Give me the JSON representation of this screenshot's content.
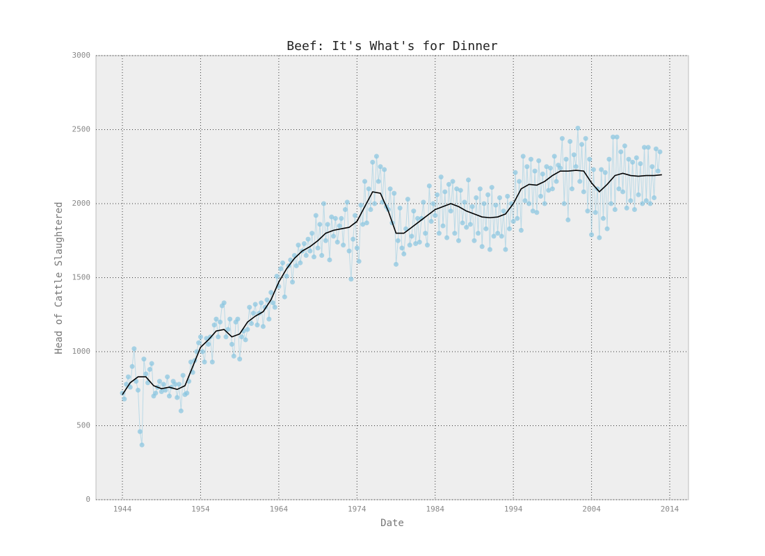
{
  "chart_data": {
    "type": "line",
    "title": "Beef: It's What's for Dinner",
    "xlabel": "Date",
    "ylabel": "Head of Cattle Slaughtered",
    "xlim": [
      1940.62,
      2016.4
    ],
    "ylim": [
      0,
      3000
    ],
    "xticks": [
      1944,
      1954,
      1964,
      1974,
      1984,
      1994,
      2004,
      2014
    ],
    "yticks": [
      0,
      500,
      1000,
      1500,
      2000,
      2500,
      3000
    ],
    "grid": true,
    "series": [
      {
        "color": "#87c5e0",
        "markers": true,
        "x": [
          1944,
          1944.25,
          1944.5,
          1944.75,
          1945,
          1945.25,
          1945.5,
          1945.75,
          1946,
          1946.25,
          1946.5,
          1946.75,
          1947,
          1947.25,
          1947.5,
          1947.75,
          1948,
          1948.25,
          1948.5,
          1948.75,
          1949,
          1949.25,
          1949.5,
          1949.75,
          1950,
          1950.25,
          1950.5,
          1950.75,
          1951,
          1951.25,
          1951.5,
          1951.75,
          1952,
          1952.25,
          1952.5,
          1952.75,
          1953,
          1953.25,
          1953.5,
          1953.75,
          1954,
          1954.25,
          1954.5,
          1954.75,
          1955,
          1955.25,
          1955.5,
          1955.75,
          1956,
          1956.25,
          1956.5,
          1956.75,
          1957,
          1957.25,
          1957.5,
          1957.75,
          1958,
          1958.25,
          1958.5,
          1958.75,
          1959,
          1959.25,
          1959.5,
          1959.75,
          1960,
          1960.25,
          1960.5,
          1960.75,
          1961,
          1961.25,
          1961.5,
          1961.75,
          1962,
          1962.25,
          1962.5,
          1962.75,
          1963,
          1963.25,
          1963.5,
          1963.75,
          1964,
          1964.25,
          1964.5,
          1964.75,
          1965,
          1965.25,
          1965.5,
          1965.75,
          1966,
          1966.25,
          1966.5,
          1966.75,
          1967,
          1967.25,
          1967.5,
          1967.75,
          1968,
          1968.25,
          1968.5,
          1968.75,
          1969,
          1969.25,
          1969.5,
          1969.75,
          1970,
          1970.25,
          1970.5,
          1970.75,
          1971,
          1971.25,
          1971.5,
          1971.75,
          1972,
          1972.25,
          1972.5,
          1972.75,
          1973,
          1973.25,
          1973.5,
          1973.75,
          1974,
          1974.25,
          1974.5,
          1974.75,
          1975,
          1975.25,
          1975.5,
          1975.75,
          1976,
          1976.25,
          1976.5,
          1976.75,
          1977,
          1977.25,
          1977.5,
          1977.75,
          1978,
          1978.25,
          1978.5,
          1978.75,
          1979,
          1979.25,
          1979.5,
          1979.75,
          1980,
          1980.25,
          1980.5,
          1980.75,
          1981,
          1981.25,
          1981.5,
          1981.75,
          1982,
          1982.25,
          1982.5,
          1982.75,
          1983,
          1983.25,
          1983.5,
          1983.75,
          1984,
          1984.25,
          1984.5,
          1984.75,
          1985,
          1985.25,
          1985.5,
          1985.75,
          1986,
          1986.25,
          1986.5,
          1986.75,
          1987,
          1987.25,
          1987.5,
          1987.75,
          1988,
          1988.25,
          1988.5,
          1988.75,
          1989,
          1989.25,
          1989.5,
          1989.75,
          1990,
          1990.25,
          1990.5,
          1990.75,
          1991,
          1991.25,
          1991.5,
          1991.75,
          1992,
          1992.25,
          1992.5,
          1992.75,
          1993,
          1993.25,
          1993.5,
          1993.75,
          1994,
          1994.25,
          1994.5,
          1994.75,
          1995,
          1995.25,
          1995.5,
          1995.75,
          1996,
          1996.25,
          1996.5,
          1996.75,
          1997,
          1997.25,
          1997.5,
          1997.75,
          1998,
          1998.25,
          1998.5,
          1998.75,
          1999,
          1999.25,
          1999.5,
          1999.75,
          2000,
          2000.25,
          2000.5,
          2000.75,
          2001,
          2001.25,
          2001.5,
          2001.75,
          2002,
          2002.25,
          2002.5,
          2002.75,
          2003,
          2003.25,
          2003.5,
          2003.75,
          2004,
          2004.25,
          2004.5,
          2004.75,
          2005,
          2005.25,
          2005.5,
          2005.75,
          2006,
          2006.25,
          2006.5,
          2006.75,
          2007,
          2007.25,
          2007.5,
          2007.75,
          2008,
          2008.25,
          2008.5,
          2008.75,
          2009,
          2009.25,
          2009.5,
          2009.75,
          2010,
          2010.25,
          2010.5,
          2010.75,
          2011,
          2011.25,
          2011.5,
          2011.75,
          2012,
          2012.25,
          2012.5,
          2012.75
        ],
        "values": [
          720,
          680,
          780,
          830,
          760,
          900,
          1020,
          800,
          740,
          460,
          370,
          950,
          850,
          790,
          880,
          920,
          700,
          720,
          760,
          800,
          730,
          780,
          740,
          830,
          700,
          760,
          800,
          780,
          690,
          780,
          600,
          840,
          710,
          720,
          800,
          930,
          860,
          940,
          1000,
          1060,
          1100,
          1000,
          930,
          1090,
          1050,
          1100,
          930,
          1180,
          1220,
          1100,
          1200,
          1310,
          1330,
          1100,
          1150,
          1220,
          1050,
          970,
          1200,
          1220,
          950,
          1100,
          1140,
          1080,
          1150,
          1300,
          1190,
          1260,
          1320,
          1180,
          1260,
          1330,
          1170,
          1300,
          1350,
          1220,
          1400,
          1330,
          1300,
          1510,
          1440,
          1560,
          1600,
          1370,
          1510,
          1580,
          1620,
          1470,
          1650,
          1580,
          1720,
          1600,
          1680,
          1730,
          1650,
          1760,
          1680,
          1800,
          1640,
          1920,
          1700,
          1860,
          1650,
          2000,
          1750,
          1860,
          1620,
          1910,
          1780,
          1900,
          1740,
          1850,
          1900,
          1720,
          1960,
          2010,
          1680,
          1490,
          1760,
          1920,
          1700,
          1610,
          1990,
          1860,
          2150,
          1870,
          2100,
          1960,
          2280,
          2000,
          2320,
          2150,
          2250,
          2010,
          2230,
          1980,
          1960,
          2100,
          1870,
          2070,
          1590,
          1750,
          1970,
          1700,
          1660,
          1830,
          2030,
          1720,
          1780,
          1950,
          1730,
          1900,
          1740,
          1900,
          2010,
          1800,
          1720,
          2120,
          1880,
          2000,
          1920,
          2060,
          1800,
          2180,
          1850,
          2080,
          1770,
          2130,
          1950,
          2150,
          1800,
          2100,
          1750,
          2090,
          1870,
          2010,
          1840,
          2160,
          1860,
          1980,
          1750,
          2040,
          1800,
          2100,
          1710,
          2000,
          1830,
          2060,
          1690,
          2110,
          1780,
          1990,
          1800,
          2040,
          1780,
          1950,
          1690,
          2050,
          1830,
          2000,
          1880,
          2210,
          1900,
          2150,
          1820,
          2320,
          2020,
          2250,
          2000,
          2300,
          1950,
          2220,
          1940,
          2290,
          2050,
          2200,
          2000,
          2250,
          2090,
          2240,
          2100,
          2320,
          2150,
          2260,
          2240,
          2440,
          2000,
          2300,
          1890,
          2420,
          2100,
          2330,
          2250,
          2510,
          2150,
          2400,
          2080,
          2440,
          1950,
          2300,
          1790,
          2230,
          1940,
          2100,
          1770,
          2230,
          1900,
          2210,
          1830,
          2300,
          2000,
          2450,
          1960,
          2450,
          2100,
          2350,
          2080,
          2390,
          1970,
          2300,
          2020,
          2280,
          1960,
          2310,
          2060,
          2270,
          2000,
          2380,
          2020,
          2380,
          2000,
          2250,
          2040,
          2370,
          2220,
          2350
        ]
      },
      {
        "color": "#000000",
        "x": [
          1944,
          1945,
          1946,
          1947,
          1948,
          1949,
          1950,
          1951,
          1952,
          1953,
          1954,
          1955,
          1956,
          1957,
          1958,
          1959,
          1960,
          1961,
          1962,
          1963,
          1964,
          1965,
          1966,
          1967,
          1968,
          1969,
          1970,
          1971,
          1972,
          1973,
          1974,
          1975,
          1976,
          1977,
          1978,
          1979,
          1980,
          1981,
          1982,
          1983,
          1984,
          1985,
          1986,
          1987,
          1988,
          1989,
          1990,
          1991,
          1992,
          1993,
          1994,
          1995,
          1996,
          1997,
          1998,
          1999,
          2000,
          2001,
          2002,
          2003,
          2004,
          2005,
          2006,
          2007,
          2008,
          2009,
          2010,
          2011,
          2012,
          2013
        ],
        "values": [
          710,
          790,
          830,
          830,
          770,
          750,
          760,
          745,
          770,
          900,
          1030,
          1080,
          1140,
          1150,
          1100,
          1120,
          1200,
          1240,
          1270,
          1350,
          1470,
          1560,
          1630,
          1680,
          1710,
          1750,
          1800,
          1820,
          1830,
          1840,
          1880,
          1980,
          2080,
          2070,
          1950,
          1800,
          1800,
          1840,
          1880,
          1920,
          1960,
          1980,
          2000,
          1980,
          1950,
          1930,
          1910,
          1905,
          1910,
          1930,
          2000,
          2100,
          2130,
          2125,
          2150,
          2190,
          2220,
          2220,
          2225,
          2220,
          2140,
          2080,
          2130,
          2190,
          2205,
          2190,
          2185,
          2190,
          2190,
          2195
        ]
      }
    ]
  }
}
